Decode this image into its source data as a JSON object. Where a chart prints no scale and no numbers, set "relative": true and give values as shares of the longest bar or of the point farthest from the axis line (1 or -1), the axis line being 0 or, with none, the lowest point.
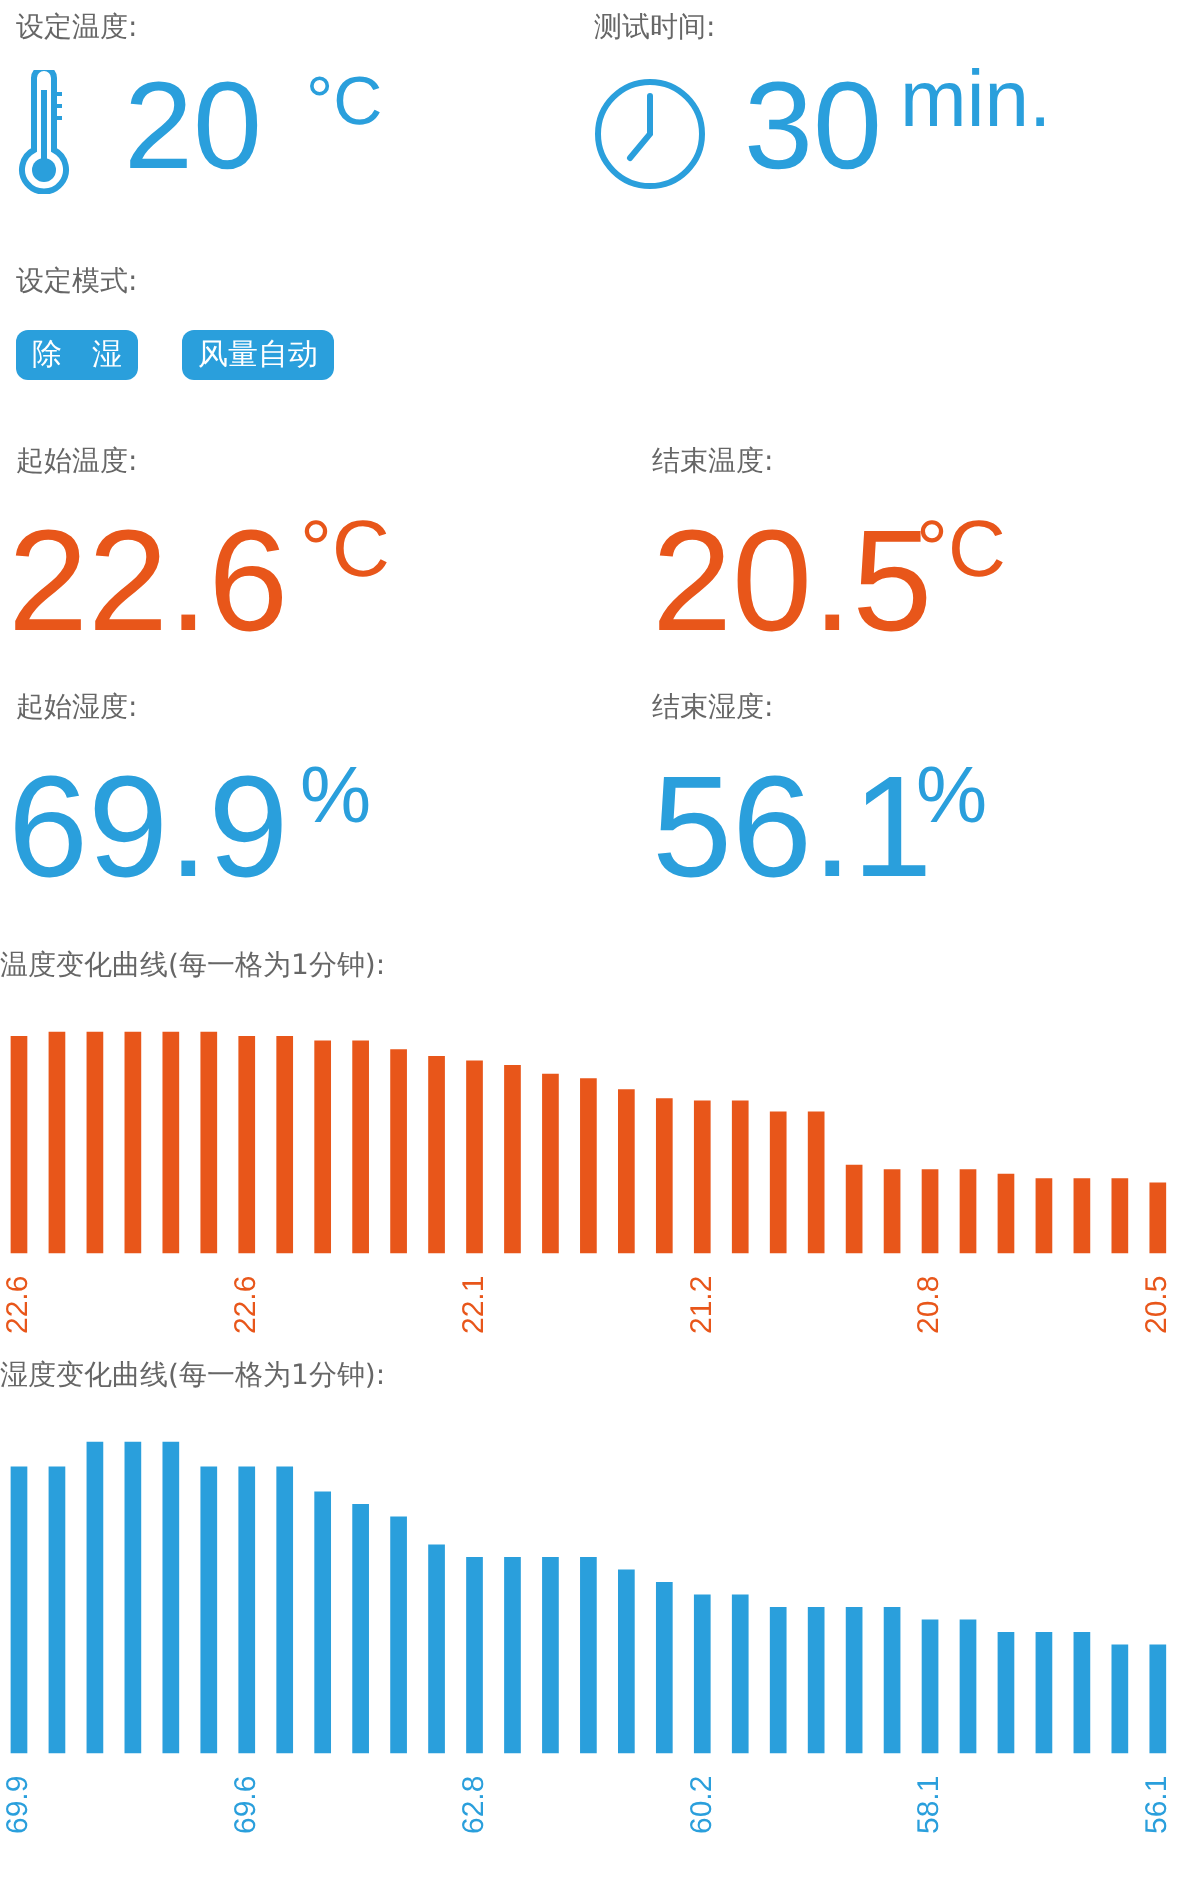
{
  "chart_data": [
    {
      "type": "other",
      "annotations": [
        "设定温度:",
        "20",
        "°C",
        "测试时间:",
        "30",
        "min.",
        "设定模式:",
        "除　湿",
        "风量自动",
        "起始温度:",
        "22.6",
        "°C",
        "结束温度:",
        "20.5",
        "°C",
        "起始湿度:",
        "69.9",
        "%",
        "结束湿度:",
        "56.1",
        "%"
      ]
    },
    {
      "type": "bar",
      "title": "温度变化曲线(每一格为1分钟):",
      "relative": true,
      "tick_labels": "x",
      "color": "#e8561a",
      "categories": [
        "22.6",
        null,
        null,
        null,
        null,
        null,
        "22.6",
        null,
        null,
        null,
        null,
        null,
        "22.1",
        null,
        null,
        null,
        null,
        null,
        "21.2",
        null,
        null,
        null,
        null,
        null,
        "20.8",
        null,
        null,
        null,
        null,
        null,
        "20.5"
      ],
      "values": [
        0.98,
        1,
        1,
        1,
        1,
        1,
        0.98,
        0.98,
        0.96,
        0.96,
        0.92,
        0.89,
        0.87,
        0.85,
        0.81,
        0.79,
        0.74,
        0.7,
        0.69,
        0.69,
        0.64,
        0.64,
        0.4,
        0.38,
        0.38,
        0.38,
        0.36,
        0.34,
        0.34,
        0.34,
        0.32
      ]
    },
    {
      "type": "bar",
      "title": "湿度变化曲线(每一格为1分钟):",
      "relative": true,
      "tick_labels": "x",
      "color": "#2a9fdc",
      "categories": [
        "69.9",
        null,
        null,
        null,
        null,
        null,
        "69.6",
        null,
        null,
        null,
        null,
        null,
        "62.8",
        null,
        null,
        null,
        null,
        null,
        "60.2",
        null,
        null,
        null,
        null,
        null,
        "58.1",
        null,
        null,
        null,
        null,
        null,
        "56.1"
      ],
      "values": [
        0.92,
        0.92,
        1,
        1,
        1,
        0.92,
        0.92,
        0.92,
        0.84,
        0.8,
        0.76,
        0.67,
        0.63,
        0.63,
        0.63,
        0.63,
        0.59,
        0.55,
        0.51,
        0.51,
        0.47,
        0.47,
        0.47,
        0.47,
        0.43,
        0.43,
        0.39,
        0.39,
        0.39,
        0.35,
        0.35
      ]
    }
  ]
}
